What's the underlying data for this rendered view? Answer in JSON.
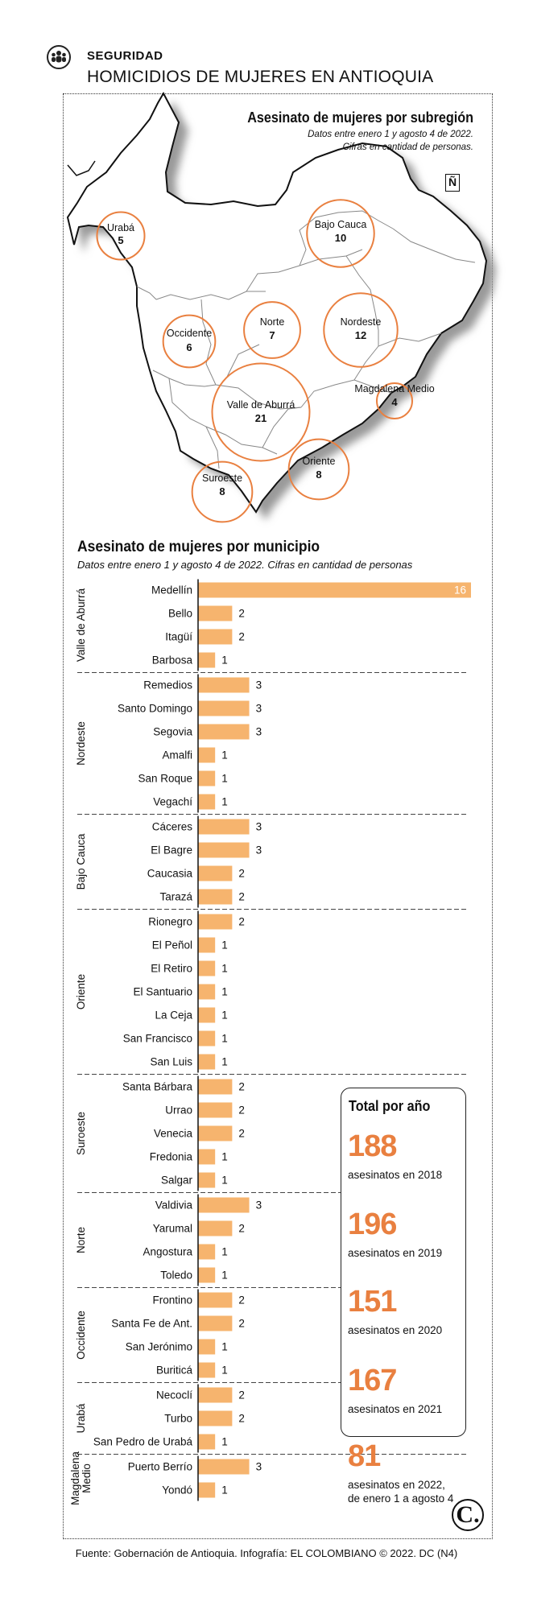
{
  "header": {
    "section": "SEGURIDAD",
    "title": "HOMICIDIOS DE MUJERES EN ANTIOQUIA"
  },
  "map": {
    "title": "Asesinato de mujeres por subregión",
    "subtitle_line1": "Datos entre enero 1 y agosto 4 de 2022.",
    "subtitle_line2": "Cifras en cantidad de personas.",
    "north_glyph": "Ñ",
    "regions": [
      {
        "name": "Urabá",
        "value": 5
      },
      {
        "name": "Bajo Cauca",
        "value": 10
      },
      {
        "name": "Occidente",
        "value": 6
      },
      {
        "name": "Norte",
        "value": 7
      },
      {
        "name": "Nordeste",
        "value": 12
      },
      {
        "name": "Magdalena Medio",
        "value": 4
      },
      {
        "name": "Valle de Aburrá",
        "value": 21
      },
      {
        "name": "Oriente",
        "value": 8
      },
      {
        "name": "Suroeste",
        "value": 8
      }
    ]
  },
  "chart_data": {
    "type": "bar",
    "orientation": "horizontal",
    "title": "Asesinato de mujeres por municipio",
    "subtitle": "Datos entre enero 1 y agosto 4 de 2022. Cifras en cantidad de personas",
    "xlim": [
      0,
      16
    ],
    "bar_color": "#f6b46e",
    "groups": [
      {
        "name": "Valle de Aburrá",
        "items": [
          {
            "label": "Medellín",
            "value": 16
          },
          {
            "label": "Bello",
            "value": 2
          },
          {
            "label": "Itagüí",
            "value": 2
          },
          {
            "label": "Barbosa",
            "value": 1
          }
        ]
      },
      {
        "name": "Nordeste",
        "items": [
          {
            "label": "Remedios",
            "value": 3
          },
          {
            "label": "Santo Domingo",
            "value": 3
          },
          {
            "label": "Segovia",
            "value": 3
          },
          {
            "label": "Amalfi",
            "value": 1
          },
          {
            "label": "San Roque",
            "value": 1
          },
          {
            "label": "Vegachí",
            "value": 1
          }
        ]
      },
      {
        "name": "Bajo Cauca",
        "items": [
          {
            "label": "Cáceres",
            "value": 3
          },
          {
            "label": "El Bagre",
            "value": 3
          },
          {
            "label": "Caucasia",
            "value": 2
          },
          {
            "label": "Tarazá",
            "value": 2
          }
        ]
      },
      {
        "name": "Oriente",
        "items": [
          {
            "label": "Rionegro",
            "value": 2
          },
          {
            "label": "El Peñol",
            "value": 1
          },
          {
            "label": "El Retiro",
            "value": 1
          },
          {
            "label": "El Santuario",
            "value": 1
          },
          {
            "label": "La Ceja",
            "value": 1
          },
          {
            "label": "San Francisco",
            "value": 1
          },
          {
            "label": "San Luis",
            "value": 1
          }
        ]
      },
      {
        "name": "Suroeste",
        "items": [
          {
            "label": "Santa Bárbara",
            "value": 2
          },
          {
            "label": "Urrao",
            "value": 2
          },
          {
            "label": "Venecia",
            "value": 2
          },
          {
            "label": "Fredonia",
            "value": 1
          },
          {
            "label": "Salgar",
            "value": 1
          }
        ]
      },
      {
        "name": "Norte",
        "items": [
          {
            "label": "Valdivia",
            "value": 3
          },
          {
            "label": "Yarumal",
            "value": 2
          },
          {
            "label": "Angostura",
            "value": 1
          },
          {
            "label": "Toledo",
            "value": 1
          }
        ]
      },
      {
        "name": "Occidente",
        "items": [
          {
            "label": "Frontino",
            "value": 2
          },
          {
            "label": "Santa Fe de Ant.",
            "value": 2
          },
          {
            "label": "San Jerónimo",
            "value": 1
          },
          {
            "label": "Buriticá",
            "value": 1
          }
        ]
      },
      {
        "name": "Urabá",
        "items": [
          {
            "label": "Necoclí",
            "value": 2
          },
          {
            "label": "Turbo",
            "value": 2
          },
          {
            "label": "San Pedro de Urabá",
            "value": 1
          }
        ]
      },
      {
        "name": "Magdalena Medio",
        "items": [
          {
            "label": "Puerto Berrío",
            "value": 3
          },
          {
            "label": "Yondó",
            "value": 1
          }
        ]
      }
    ]
  },
  "totals": {
    "title": "Total por año",
    "entries": [
      {
        "number": "188",
        "label": "asesinatos en 2018"
      },
      {
        "number": "196",
        "label": "asesinatos en 2019"
      },
      {
        "number": "151",
        "label": "asesinatos en 2020"
      },
      {
        "number": "167",
        "label": "asesinatos en 2021"
      },
      {
        "number": "81",
        "label": "asesinatos en 2022,",
        "label2": "de enero 1 a agosto 4"
      }
    ]
  },
  "colors": {
    "accent": "#e98040",
    "bar": "#f6b46e",
    "circle": "#e98040"
  },
  "logo_text": "C.",
  "footer": "Fuente: Gobernación de Antioquia. Infografía: EL COLOMBIANO © 2022. DC (N4)"
}
